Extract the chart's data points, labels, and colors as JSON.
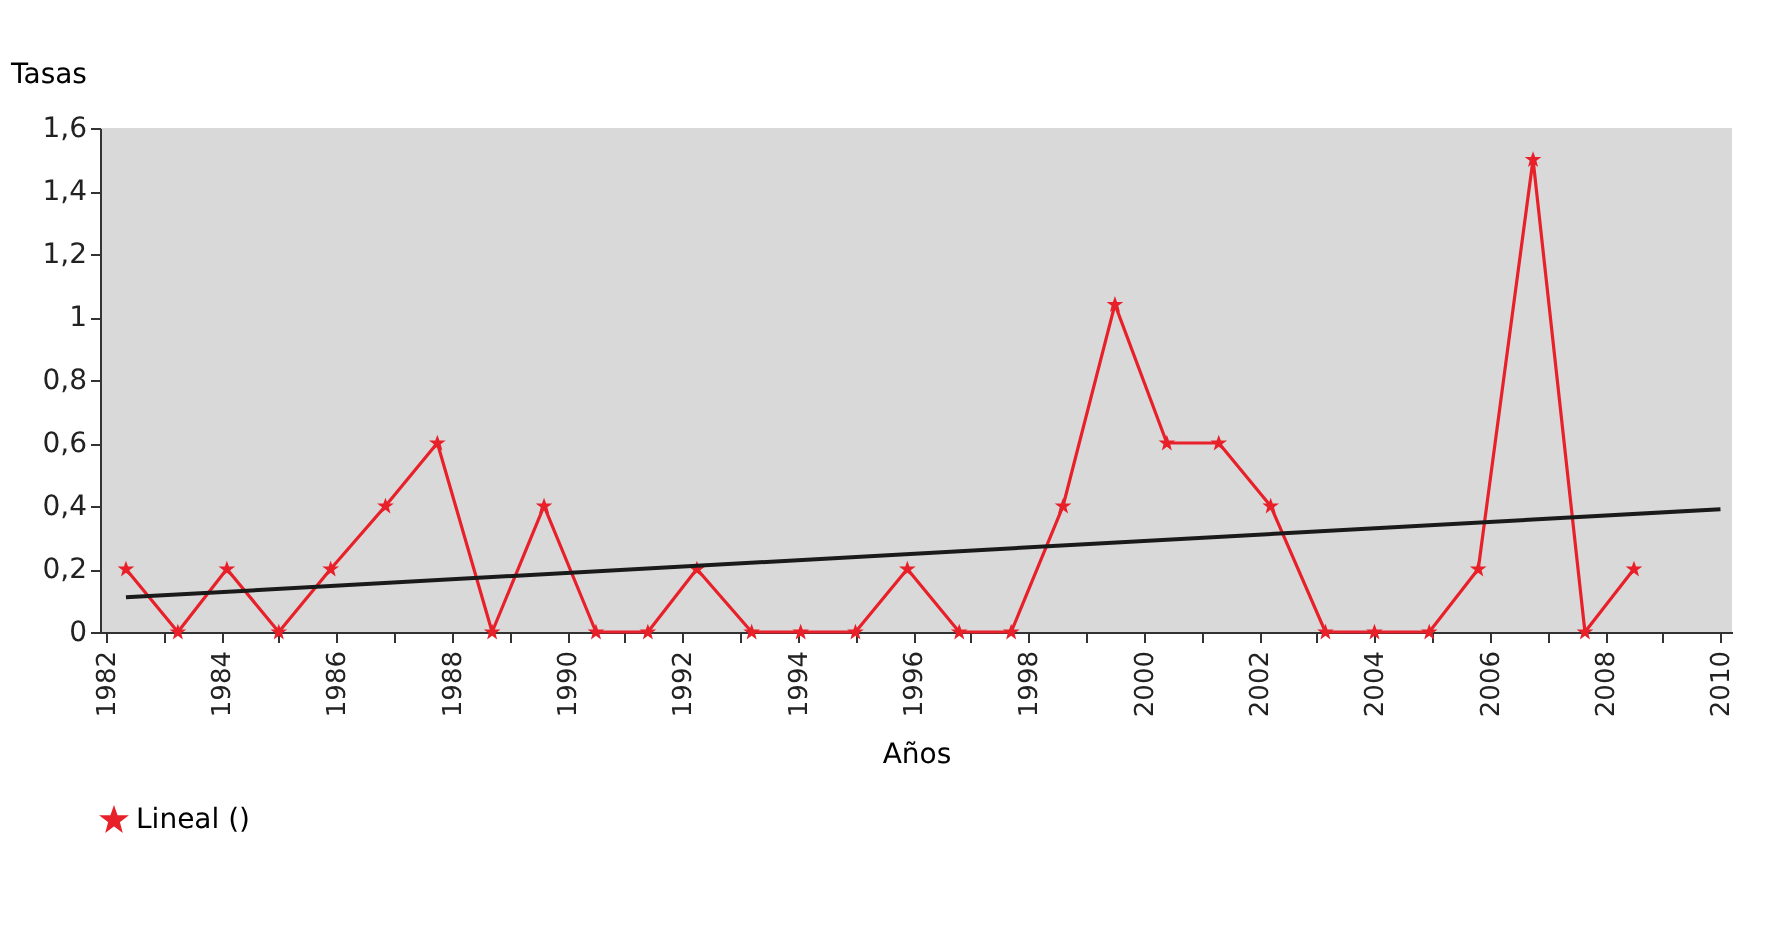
{
  "chart_data": {
    "type": "line",
    "xlabel": "Años",
    "ylabel": "Tasas",
    "series": [
      {
        "name": "Lineal ()",
        "color": "#e8202a",
        "marker": "star",
        "x": [
          1982.35,
          1983.25,
          1984.1,
          1985.0,
          1985.9,
          1986.85,
          1987.75,
          1988.7,
          1989.6,
          1990.5,
          1991.4,
          1992.25,
          1993.2,
          1994.05,
          1995.0,
          1995.9,
          1996.8,
          1997.7,
          1998.6,
          1999.5,
          2000.4,
          2001.3,
          2002.2,
          2003.15,
          2004.0,
          2004.95,
          2005.8,
          2006.75,
          2007.65,
          2008.5
        ],
        "values": [
          0.2,
          0,
          0.2,
          0,
          0.2,
          0.4,
          0.6,
          0,
          0.4,
          0,
          0,
          0.2,
          0,
          0,
          0,
          0.2,
          0,
          0,
          0.4,
          1.04,
          0.6,
          0.6,
          0.4,
          0,
          0,
          0,
          0.2,
          1.5,
          0,
          0.2
        ]
      },
      {
        "type": "line",
        "color": "#1a1a1a",
        "marker": "none",
        "x": [
          1982.35,
          2010.0
        ],
        "values": [
          0.11,
          0.39
        ]
      }
    ],
    "xlim": [
      1981.9,
      2010.2
    ],
    "xticks": [
      1982,
      {
        "value": 1983,
        "label": null
      },
      1984,
      {
        "value": 1985,
        "label": null
      },
      1986,
      {
        "value": 1987,
        "label": null
      },
      1988,
      {
        "value": 1989,
        "label": null
      },
      1990,
      {
        "value": 1991,
        "label": null
      },
      1992,
      {
        "value": 1993,
        "label": null
      },
      1994,
      {
        "value": 1995,
        "label": null
      },
      1996,
      {
        "value": 1997,
        "label": null
      },
      1998,
      {
        "value": 1999,
        "label": null
      },
      2000,
      {
        "value": 2001,
        "label": null
      },
      2002,
      {
        "value": 2003,
        "label": null
      },
      2004,
      {
        "value": 2005,
        "label": null
      },
      2006,
      {
        "value": 2007,
        "label": null
      },
      2008,
      {
        "value": 2009,
        "label": null
      },
      2010
    ],
    "ylim": [
      0,
      1.6
    ],
    "yticks": [
      0,
      {
        "value": 0.2,
        "label": "0,2"
      },
      {
        "value": 0.4,
        "label": "0,4"
      },
      {
        "value": 0.6,
        "label": "0,6"
      },
      {
        "value": 0.8,
        "label": "0,8"
      },
      1,
      {
        "value": 1.2,
        "label": "1,2"
      },
      {
        "value": 1.4,
        "label": "1,4"
      },
      {
        "value": 1.6,
        "label": "1,6"
      }
    ],
    "grid": false,
    "legend": "bottom",
    "line_style": "solid"
  }
}
